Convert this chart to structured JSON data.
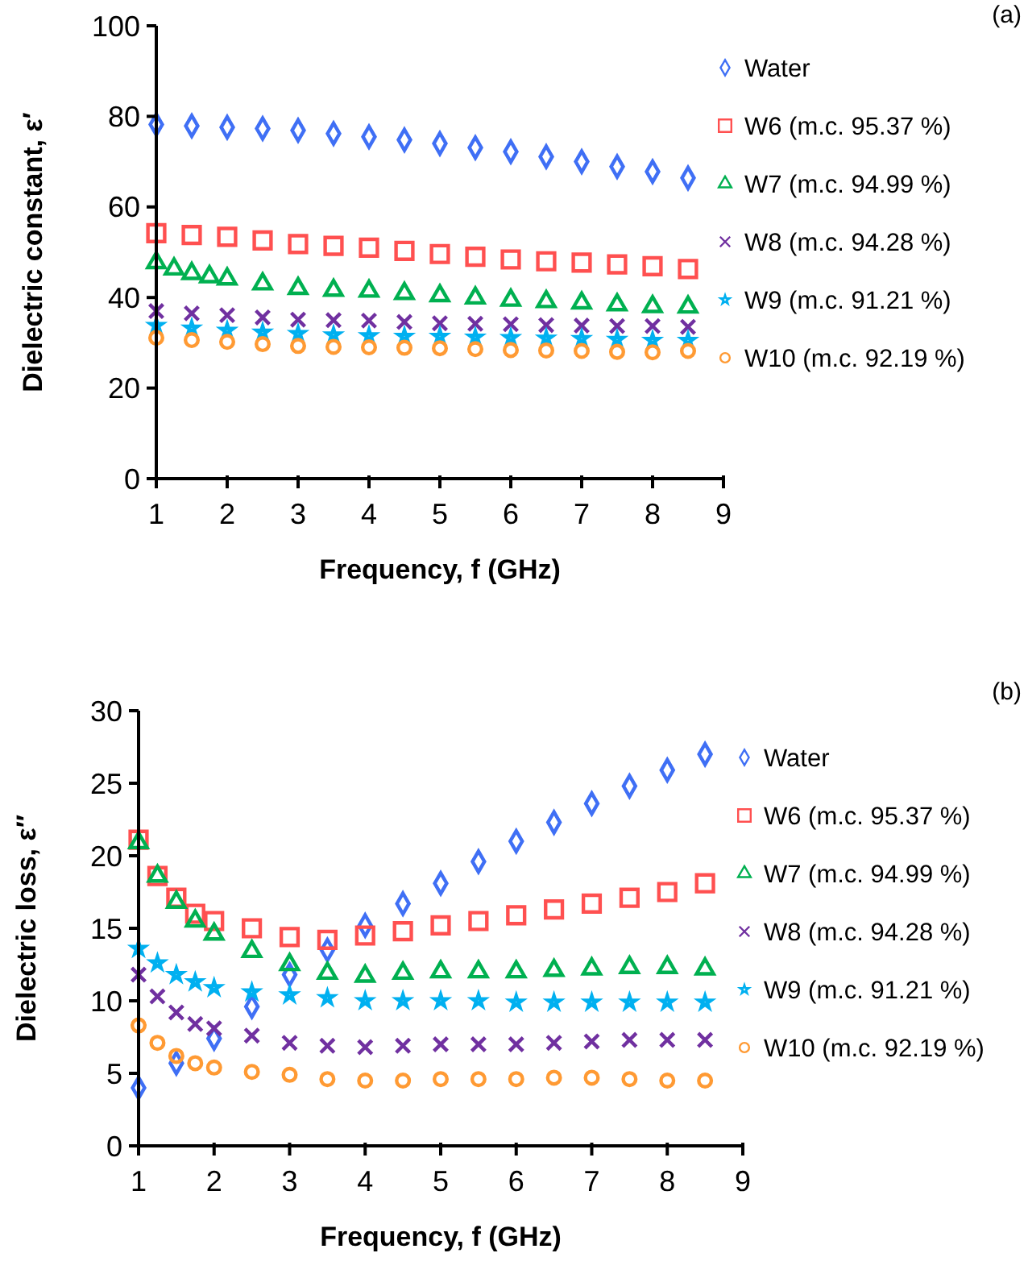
{
  "chart_data": [
    {
      "type": "scatter",
      "xlabel": "Frequency, f (GHz)",
      "ylabel": "Dielectric constant, ε′",
      "annotations": [
        "(a)"
      ],
      "xlim": [
        1,
        9
      ],
      "xticks": [
        1,
        2,
        3,
        4,
        5,
        6,
        7,
        8,
        9
      ],
      "ylim": [
        0,
        100
      ],
      "yticks": [
        0,
        20,
        40,
        60,
        80,
        100
      ],
      "legend": "right",
      "series": [
        {
          "name": "Water",
          "color": "#3f6ff5",
          "marker": "diamond",
          "x": [
            1,
            1.5,
            2,
            2.5,
            3,
            3.5,
            4,
            4.5,
            5,
            5.5,
            6,
            6.5,
            7,
            7.5,
            8,
            8.5
          ],
          "values": [
            78.2,
            77.9,
            77.6,
            77.3,
            76.9,
            76.2,
            75.5,
            74.8,
            74,
            73.1,
            72.2,
            71.1,
            70,
            68.9,
            67.8,
            66.4
          ]
        },
        {
          "name": "W6 (m.c. 95.37 %)",
          "color": "#ff5050",
          "marker": "square",
          "x": [
            1,
            1.5,
            2,
            2.5,
            3,
            3.5,
            4,
            4.5,
            5,
            5.5,
            6,
            6.5,
            7,
            7.5,
            8,
            8.5
          ],
          "values": [
            54.2,
            53.8,
            53.4,
            52.6,
            51.8,
            51.4,
            51,
            50.3,
            49.6,
            49,
            48.4,
            48,
            47.7,
            47.3,
            46.9,
            46.3
          ]
        },
        {
          "name": "W7 (m.c. 94.99 %)",
          "color": "#00b050",
          "marker": "triangle",
          "x": [
            1,
            1.25,
            1.5,
            1.75,
            2,
            2.5,
            3,
            3.5,
            4,
            4.5,
            5,
            5.5,
            6,
            6.5,
            7,
            7.5,
            8,
            8.5
          ],
          "values": [
            47.7,
            46.3,
            45.3,
            44.6,
            44.1,
            43,
            42,
            41.6,
            41.4,
            40.9,
            40.4,
            39.9,
            39.4,
            39.1,
            38.8,
            38.4,
            38,
            37.9
          ]
        },
        {
          "name": "W8 (m.c. 94.28 %)",
          "color": "#7030a0",
          "marker": "cross",
          "x": [
            1,
            1.5,
            2,
            2.5,
            3,
            3.5,
            4,
            4.5,
            5,
            5.5,
            6,
            6.5,
            7,
            7.5,
            8,
            8.5
          ],
          "values": [
            37,
            36.5,
            36.1,
            35.6,
            35.1,
            35,
            34.9,
            34.6,
            34.3,
            34.2,
            34.1,
            33.9,
            33.8,
            33.7,
            33.7,
            33.5
          ]
        },
        {
          "name": "W9 (m.c. 91.21 %)",
          "color": "#00b0f0",
          "marker": "star",
          "x": [
            1,
            1.5,
            2,
            2.5,
            3,
            3.5,
            4,
            4.5,
            5,
            5.5,
            6,
            6.5,
            7,
            7.5,
            8,
            8.5
          ],
          "values": [
            33.8,
            33.2,
            32.7,
            32.3,
            32,
            31.7,
            31.5,
            31.4,
            31.4,
            31.2,
            31.1,
            31,
            30.9,
            30.7,
            30.5,
            30.5
          ]
        },
        {
          "name": "W10 (m.c. 92.19 %)",
          "color": "#ff9a33",
          "marker": "circle",
          "x": [
            1,
            1.5,
            2,
            2.5,
            3,
            3.5,
            4,
            4.5,
            5,
            5.5,
            6,
            6.5,
            7,
            7.5,
            8,
            8.5
          ],
          "values": [
            31.1,
            30.6,
            30.2,
            29.7,
            29.3,
            29.1,
            29,
            28.9,
            28.8,
            28.6,
            28.4,
            28.3,
            28.2,
            28,
            27.9,
            28.2
          ]
        }
      ]
    },
    {
      "type": "scatter",
      "xlabel": "Frequency, f (GHz)",
      "ylabel": "Dielectric loss, ε″",
      "annotations": [
        "(b)"
      ],
      "xlim": [
        1,
        9
      ],
      "xticks": [
        1,
        2,
        3,
        4,
        5,
        6,
        7,
        8,
        9
      ],
      "ylim": [
        0,
        30
      ],
      "yticks": [
        0,
        5,
        10,
        15,
        20,
        25,
        30
      ],
      "legend": "right",
      "series": [
        {
          "name": "Water",
          "color": "#3f6ff5",
          "marker": "diamond",
          "x": [
            1,
            1.5,
            2,
            2.5,
            3,
            3.5,
            4,
            4.5,
            5,
            5.5,
            6,
            6.5,
            7,
            7.5,
            8,
            8.5
          ],
          "values": [
            4,
            5.7,
            7.4,
            9.6,
            11.8,
            13.5,
            15.2,
            16.7,
            18.1,
            19.6,
            21,
            22.3,
            23.6,
            24.8,
            25.9,
            27
          ]
        },
        {
          "name": "W6 (m.c. 95.37 %)",
          "color": "#ff5050",
          "marker": "square",
          "x": [
            1,
            1.25,
            1.5,
            1.75,
            2,
            2.5,
            3,
            3.5,
            4,
            4.5,
            5,
            5.5,
            6,
            6.5,
            7,
            7.5,
            8,
            8.5
          ],
          "values": [
            21.1,
            18.6,
            17.1,
            16,
            15.5,
            15,
            14.4,
            14.2,
            14.5,
            14.8,
            15.2,
            15.5,
            15.9,
            16.3,
            16.7,
            17.1,
            17.5,
            18.1
          ]
        },
        {
          "name": "W7 (m.c. 94.99 %)",
          "color": "#00b050",
          "marker": "triangle",
          "x": [
            1,
            1.25,
            1.5,
            1.75,
            2,
            2.5,
            3,
            3.5,
            4,
            4.5,
            5,
            5.5,
            6,
            6.5,
            7,
            7.5,
            8,
            8.5
          ],
          "values": [
            20.9,
            18.6,
            16.8,
            15.5,
            14.6,
            13.4,
            12.5,
            11.9,
            11.7,
            11.9,
            12,
            12,
            12,
            12.1,
            12.2,
            12.3,
            12.3,
            12.2
          ]
        },
        {
          "name": "W8 (m.c. 94.28 %)",
          "color": "#7030a0",
          "marker": "cross",
          "x": [
            1,
            1.25,
            1.5,
            1.75,
            2,
            2.5,
            3,
            3.5,
            4,
            4.5,
            5,
            5.5,
            6,
            6.5,
            7,
            7.5,
            8,
            8.5
          ],
          "values": [
            11.8,
            10.3,
            9.2,
            8.4,
            8.1,
            7.6,
            7.1,
            6.9,
            6.8,
            6.9,
            7,
            7,
            7,
            7.1,
            7.2,
            7.3,
            7.3,
            7.3
          ]
        },
        {
          "name": "W9 (m.c. 91.21 %)",
          "color": "#00b0f0",
          "marker": "star",
          "x": [
            1,
            1.25,
            1.5,
            1.75,
            2,
            2.5,
            3,
            3.5,
            4,
            4.5,
            5,
            5.5,
            6,
            6.5,
            7,
            7.5,
            8,
            8.5
          ],
          "values": [
            13.6,
            12.6,
            11.8,
            11.3,
            10.9,
            10.6,
            10.4,
            10.2,
            10,
            10,
            10,
            10,
            9.9,
            9.9,
            9.9,
            9.9,
            9.9,
            9.9
          ]
        },
        {
          "name": "W10 (m.c. 92.19 %)",
          "color": "#ff9a33",
          "marker": "circle",
          "x": [
            1,
            1.25,
            1.5,
            1.75,
            2,
            2.5,
            3,
            3.5,
            4,
            4.5,
            5,
            5.5,
            6,
            6.5,
            7,
            7.5,
            8,
            8.5
          ],
          "values": [
            8.3,
            7.1,
            6.2,
            5.7,
            5.4,
            5.1,
            4.9,
            4.6,
            4.5,
            4.5,
            4.6,
            4.6,
            4.6,
            4.7,
            4.7,
            4.6,
            4.5,
            4.5
          ]
        }
      ]
    }
  ]
}
